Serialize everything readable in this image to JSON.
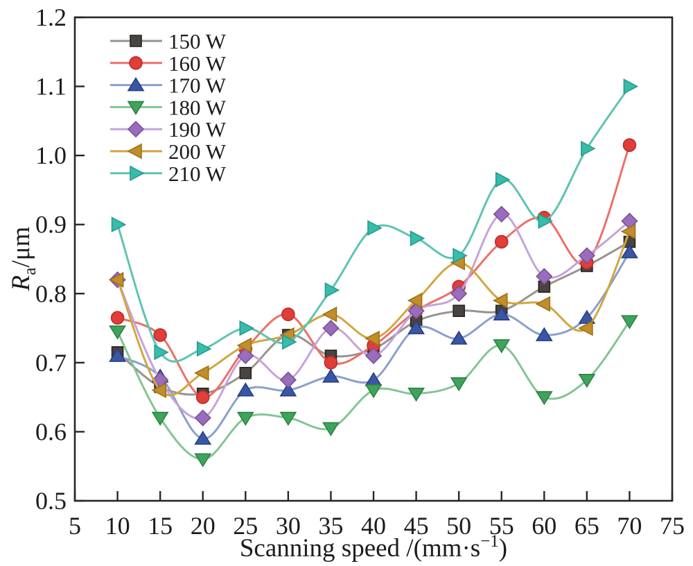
{
  "figure": {
    "xlabel": {
      "pre": "Scanning speed /(mm·s",
      "sup": "−1",
      "post": ")",
      "full": "Scanning speed /(mm·s−1)"
    },
    "ylabel": {
      "var": "R",
      "sub": "a",
      "rest": "/μm",
      "full": "Ra/μm"
    }
  },
  "chart_data": {
    "type": "line",
    "title": "",
    "xlabel": "Scanning speed /(mm·s−1)",
    "ylabel": "Ra/μm",
    "grid": false,
    "smooth": true,
    "legend_position": "top-left",
    "xlim": [
      5,
      75
    ],
    "ylim": [
      0.5,
      1.2
    ],
    "xticks": [
      5,
      10,
      15,
      20,
      25,
      30,
      35,
      40,
      45,
      50,
      55,
      60,
      65,
      70,
      75
    ],
    "yticks": [
      0.5,
      0.6,
      0.7,
      0.8,
      0.9,
      1.0,
      1.1,
      1.2
    ],
    "x": [
      10,
      15,
      20,
      25,
      30,
      35,
      40,
      45,
      50,
      55,
      60,
      65,
      70
    ],
    "axis_color": "#262626",
    "series": [
      {
        "name": "150 W",
        "marker": "square",
        "color": "#494341",
        "edge_color": "#28221f",
        "line_color": "#989391",
        "values": [
          0.715,
          0.665,
          0.655,
          0.685,
          0.74,
          0.71,
          0.72,
          0.76,
          0.775,
          0.775,
          0.81,
          0.84,
          0.875
        ]
      },
      {
        "name": "160 W",
        "marker": "circle",
        "color": "#e23d38",
        "edge_color": "#b52f29",
        "line_color": "#ed6f68",
        "values": [
          0.765,
          0.74,
          0.65,
          0.72,
          0.77,
          0.7,
          0.725,
          0.775,
          0.81,
          0.875,
          0.91,
          0.845,
          1.015
        ]
      },
      {
        "name": "170 W",
        "marker": "triangle-up",
        "color": "#3a57a5",
        "edge_color": "#273f7f",
        "line_color": "#8aa0cc",
        "values": [
          0.71,
          0.68,
          0.59,
          0.66,
          0.66,
          0.68,
          0.675,
          0.75,
          0.735,
          0.77,
          0.74,
          0.765,
          0.86
        ]
      },
      {
        "name": "180 W",
        "marker": "triangle-down",
        "color": "#3fa45b",
        "edge_color": "#2e8044",
        "line_color": "#83c596",
        "values": [
          0.745,
          0.62,
          0.56,
          0.62,
          0.62,
          0.605,
          0.66,
          0.655,
          0.67,
          0.725,
          0.65,
          0.675,
          0.76
        ]
      },
      {
        "name": "190 W",
        "marker": "diamond",
        "color": "#9a6cbb",
        "edge_color": "#77519a",
        "line_color": "#c6a3da",
        "values": [
          0.82,
          0.675,
          0.62,
          0.71,
          0.675,
          0.75,
          0.71,
          0.775,
          0.8,
          0.915,
          0.825,
          0.855,
          0.905
        ]
      },
      {
        "name": "200 W",
        "marker": "triangle-left",
        "color": "#c28d2b",
        "edge_color": "#9d7118",
        "line_color": "#d2a63e",
        "values": [
          0.82,
          0.66,
          0.685,
          0.725,
          0.74,
          0.77,
          0.735,
          0.79,
          0.845,
          0.79,
          0.785,
          0.75,
          0.89
        ]
      },
      {
        "name": "210 W",
        "marker": "triangle-right",
        "color": "#38bcab",
        "edge_color": "#279a8a",
        "line_color": "#5ec4b2",
        "values": [
          0.9,
          0.715,
          0.72,
          0.75,
          0.73,
          0.805,
          0.895,
          0.88,
          0.855,
          0.965,
          0.905,
          1.01,
          1.1
        ]
      }
    ]
  }
}
